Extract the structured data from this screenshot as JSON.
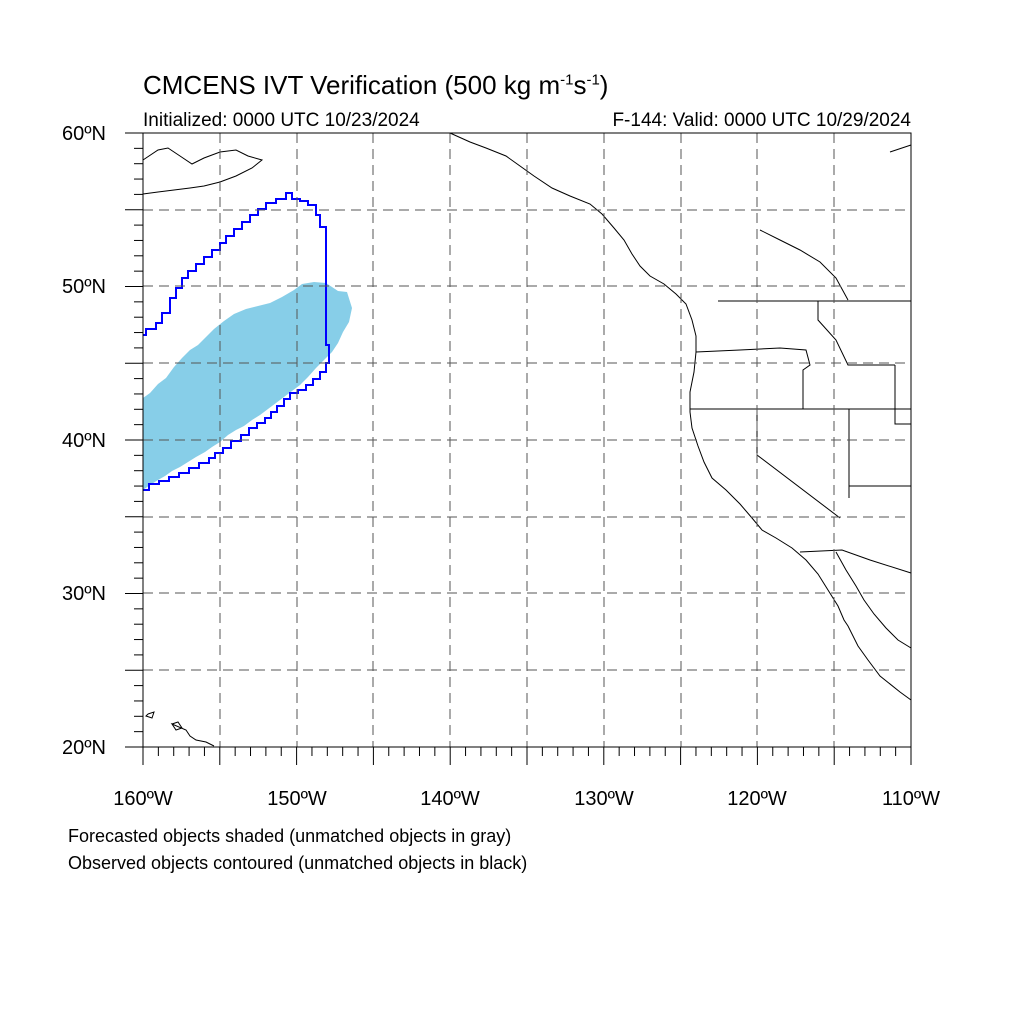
{
  "title": {
    "prefix": "CMCENS IVT Verification (500 kg m",
    "exp1": "-1",
    "mid": "s",
    "exp2": "-1",
    "suffix": ")"
  },
  "subtitle_left": "Initialized: 0000 UTC 10/23/2024",
  "subtitle_right": "F-144: Valid: 0000 UTC 10/29/2024",
  "lat_labels": [
    "60ºN",
    "50ºN",
    "40ºN",
    "30ºN",
    "20ºN"
  ],
  "lon_labels": [
    "160ºW",
    "150ºW",
    "140ºW",
    "130ºW",
    "120ºW",
    "110ºW"
  ],
  "caption_line1": "Forecasted objects shaded (unmatched objects in gray)",
  "caption_line2": "Observed objects contoured (unmatched objects in black)",
  "map": {
    "lon_range": [
      -160,
      -110
    ],
    "lat_range": [
      20,
      60
    ],
    "gridline_spacing_deg": 5,
    "gridline_style": "dashed",
    "forecast_object_color": "#87CEE8",
    "observed_contour_color": "#0000FF",
    "coastline_color": "#000000"
  }
}
